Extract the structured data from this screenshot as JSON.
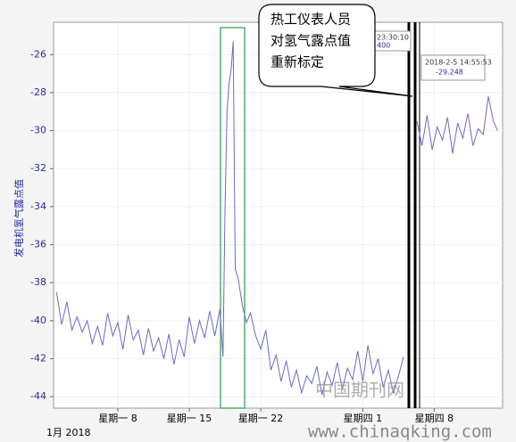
{
  "chart_data": {
    "type": "line",
    "ylabel": "发电机氢气露点值",
    "xlabel": "1月 2018",
    "color": "#6a6ac8",
    "ylim": [
      -44.6,
      -24.3
    ],
    "yticks": [
      -44,
      -42,
      -40,
      -38,
      -36,
      -34,
      -32,
      -30,
      -28,
      -26
    ],
    "xlim": [
      1.7,
      45.7
    ],
    "xticks": [
      {
        "value": 8,
        "label": "星期一 8"
      },
      {
        "value": 15,
        "label": "星期一 15"
      },
      {
        "value": 22,
        "label": "星期一 22"
      },
      {
        "value": 32,
        "label": "星期四 1"
      },
      {
        "value": 39,
        "label": "星期四 8"
      }
    ],
    "grid": true,
    "x": [
      2,
      2.5,
      3,
      3.5,
      4,
      4.5,
      5,
      5.5,
      6,
      6.5,
      7,
      7.5,
      8,
      8.5,
      9,
      9.5,
      10,
      10.5,
      11,
      11.5,
      12,
      12.5,
      13,
      13.5,
      14,
      14.5,
      15,
      15.5,
      16,
      16.5,
      17,
      17.5,
      18,
      18.3,
      18.5,
      18.7,
      18.9,
      19.1,
      19.3,
      19.5,
      19.8,
      20.2,
      20.6,
      21,
      21.5,
      22,
      22.5,
      23,
      23.5,
      24,
      24.5,
      25,
      25.5,
      26,
      26.5,
      27,
      27.5,
      28,
      28.5,
      29,
      29.5,
      30,
      30.5,
      31,
      31.5,
      32,
      32.5,
      33,
      33.5,
      34,
      34.5,
      35,
      35.5,
      36,
      36.5,
      37.3,
      37.8,
      38.3,
      38.8,
      39.3,
      39.8,
      40.3,
      40.8,
      41.3,
      41.8,
      42.3,
      42.8,
      43.3,
      43.8,
      44.3,
      44.8,
      45.2
    ],
    "values": [
      -38.5,
      -40.2,
      -39.0,
      -40.5,
      -39.8,
      -40.6,
      -40.0,
      -41.2,
      -40.3,
      -41.3,
      -39.6,
      -40.8,
      -40.1,
      -41.5,
      -39.7,
      -41.0,
      -40.5,
      -41.8,
      -40.4,
      -41.6,
      -40.9,
      -42.0,
      -40.7,
      -42.3,
      -41.0,
      -41.9,
      -39.8,
      -41.2,
      -40.0,
      -40.9,
      -39.5,
      -40.8,
      -39.4,
      -41.9,
      -34,
      -29,
      -27.5,
      -26.8,
      -25.3,
      -37.3,
      -37.8,
      -39.2,
      -40.1,
      -39.6,
      -40.8,
      -41.5,
      -40.5,
      -42.6,
      -41.8,
      -43.2,
      -42.1,
      -43.5,
      -42.6,
      -43.8,
      -42.9,
      -43.3,
      -42.4,
      -43.9,
      -42.7,
      -43.4,
      -42.2,
      -43.6,
      -42.5,
      -43.1,
      -41.6,
      -43.2,
      -41.3,
      -42.8,
      -42.0,
      -43.5,
      -42.6,
      -43.8,
      -42.9,
      -41.9,
      null,
      -29.5,
      -30.8,
      -29.2,
      -31.0,
      -29.8,
      -30.5,
      -29.3,
      -31.2,
      -29.6,
      -30.4,
      -29.1,
      -30.8,
      -29.9,
      -30.2,
      -28.2,
      -29.5,
      -30.0
    ],
    "callout": [
      "热工仪表人员",
      "对氢气露点值",
      "重新标定"
    ],
    "tooltips": [
      [
        "23:30:10",
        "400"
      ],
      [
        "2018-2-5 14:55:53",
        "-29.248"
      ]
    ],
    "watermark": [
      "中国期刊网",
      "www.chinaqking.com"
    ]
  }
}
